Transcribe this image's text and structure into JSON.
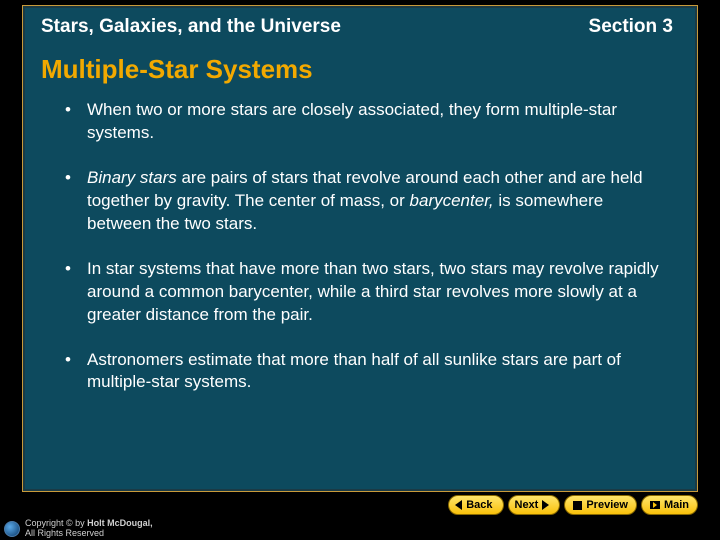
{
  "header": {
    "left": "Stars, Galaxies, and the Universe",
    "right": "Section 3"
  },
  "title": "Multiple-Star Systems",
  "bullets": {
    "b0": {
      "plain": "When two or more stars are closely associated, they form multiple-star systems."
    },
    "b1": {
      "lead_italic": "Binary stars",
      "mid": " are pairs of stars that revolve around each other and are held together by gravity. The center of mass, or ",
      "italic2": "barycenter,",
      "tail": " is somewhere between the two stars."
    },
    "b2": {
      "plain": "In star systems that have more than two stars, two stars may revolve rapidly around a common barycenter, while a third star revolves more slowly at a greater distance from the pair."
    },
    "b3": {
      "plain": "Astronomers estimate that more than half of all sunlike stars are part of multiple-star systems."
    }
  },
  "nav": {
    "back": "Back",
    "next": "Next",
    "preview": "Preview",
    "main": "Main"
  },
  "footer": {
    "brand": "Holt McDougal,",
    "rights": "All Rights Reserved",
    "copymark": "Copyright © by"
  },
  "colors": {
    "slide_bg": "#0d4a5e",
    "border": "#c89a3a",
    "title": "#f2a900",
    "text": "#ffffff",
    "button_top": "#ffe56b",
    "button_bottom": "#f9c10b",
    "page_bg": "#000000"
  }
}
